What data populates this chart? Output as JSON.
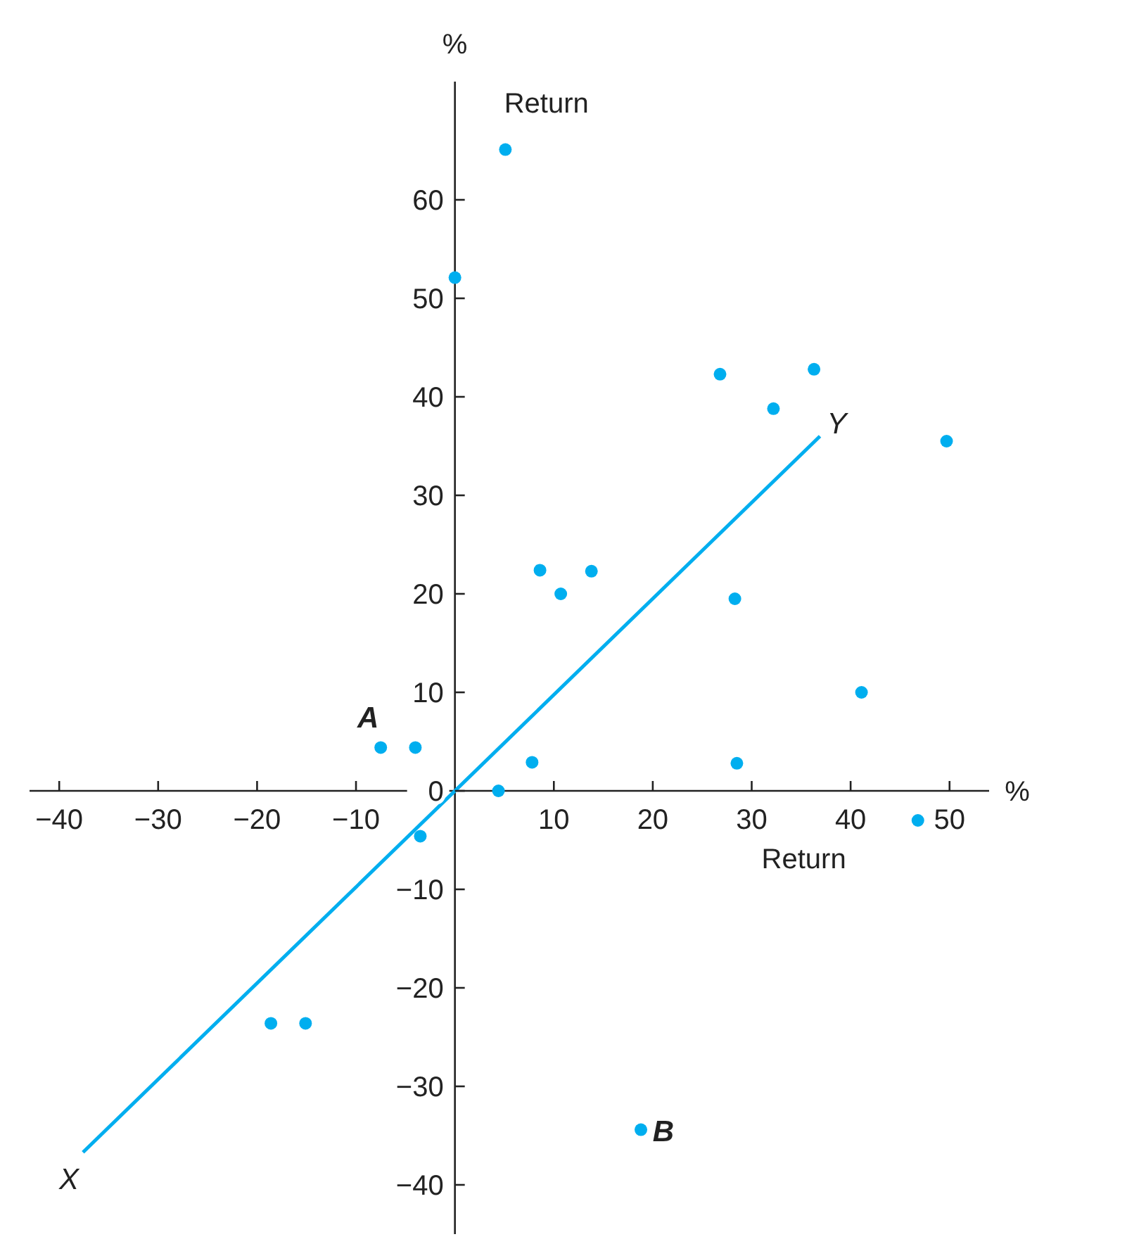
{
  "chart_data": {
    "type": "scatter",
    "xlabel": "%",
    "ylabel": "%",
    "annotations": [
      "Return",
      "Return",
      {
        "text": "A",
        "x": -7.5,
        "y": 4.4
      },
      {
        "text": "B",
        "x": 18.8,
        "y": -34.4
      },
      {
        "text": "X",
        "x": -37.6,
        "y": -36.7
      },
      {
        "text": "Y",
        "x": 36.9,
        "y": 36
      }
    ],
    "series": [
      {
        "color": "#00aeef",
        "x": [
          5.1,
          0,
          26.8,
          36.3,
          32.2,
          49.7,
          8.6,
          13.8,
          10.7,
          28.3,
          41.1,
          -7.5,
          -4,
          7.8,
          28.5,
          4.4,
          46.8,
          -3.5,
          -18.6,
          -15.1,
          18.8
        ],
        "values": [
          65.1,
          52.1,
          42.3,
          42.8,
          38.8,
          35.5,
          22.4,
          22.3,
          20,
          19.5,
          10,
          4.4,
          4.4,
          2.9,
          2.8,
          0,
          -3,
          -4.6,
          -23.6,
          -23.6,
          -34.4
        ]
      },
      {
        "type": "line",
        "marker": "none",
        "color": "#00aeef",
        "x": [
          -37.6,
          36.9
        ],
        "values": [
          -36.7,
          36
        ]
      }
    ],
    "xlim": [
      -43,
      54
    ],
    "ylim": [
      -45,
      72
    ],
    "xticks": [
      {
        "value": -40,
        "label": "−40"
      },
      {
        "value": -30,
        "label": "−30"
      },
      {
        "value": -20,
        "label": "−20"
      },
      {
        "value": -10,
        "label": "−10"
      },
      10,
      20,
      30,
      40,
      50
    ],
    "yticks": [
      {
        "value": -40,
        "label": "−40"
      },
      {
        "value": -30,
        "label": "−30"
      },
      {
        "value": -20,
        "label": "−20"
      },
      {
        "value": -10,
        "label": "−10"
      },
      0,
      10,
      20,
      30,
      40,
      50,
      60
    ],
    "marker": "circle",
    "grid": false
  }
}
